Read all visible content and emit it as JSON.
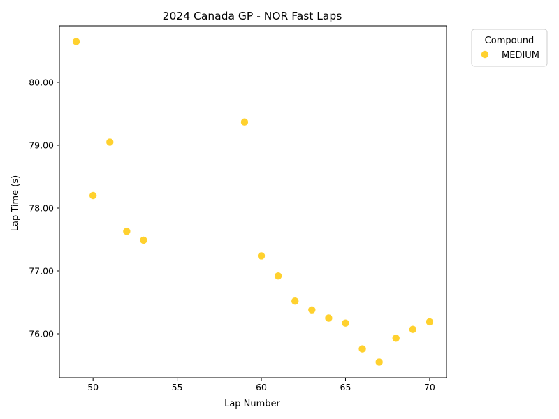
{
  "chart_data": {
    "type": "scatter",
    "title": "2024 Canada GP - NOR Fast Laps",
    "xlabel": "Lap Number",
    "ylabel": "Lap Time (s)",
    "xlim": [
      48,
      71
    ],
    "ylim": [
      75.3,
      80.9
    ],
    "xticks": [
      50,
      55,
      60,
      65,
      70
    ],
    "yticks": [
      76.0,
      77.0,
      78.0,
      79.0,
      80.0
    ],
    "ytick_labels": [
      "76.00",
      "77.00",
      "78.00",
      "79.00",
      "80.00"
    ],
    "grid": false,
    "legend": {
      "title": "Compound",
      "placement": "outside-top-right"
    },
    "series": [
      {
        "name": "MEDIUM",
        "color": "#FFD12E",
        "x": [
          49,
          50,
          51,
          52,
          53,
          59,
          60,
          61,
          62,
          63,
          64,
          65,
          66,
          67,
          68,
          69,
          70
        ],
        "y": [
          80.65,
          78.2,
          79.05,
          77.63,
          77.49,
          79.37,
          77.24,
          76.92,
          76.52,
          76.38,
          76.25,
          76.17,
          75.76,
          75.55,
          75.93,
          76.07,
          76.19
        ]
      }
    ]
  }
}
